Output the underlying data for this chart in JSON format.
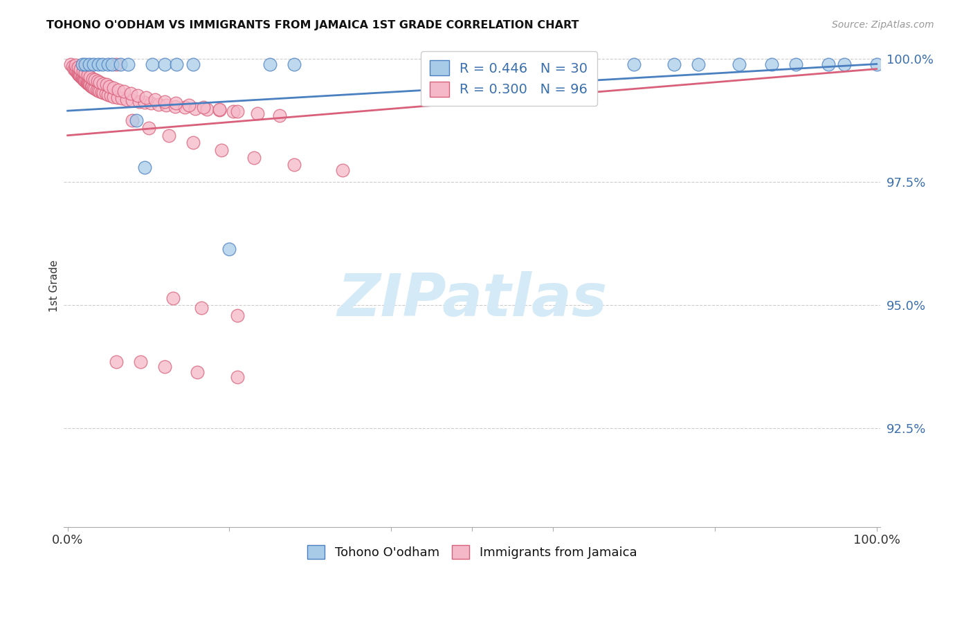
{
  "title": "TOHONO O'ODHAM VS IMMIGRANTS FROM JAMAICA 1ST GRADE CORRELATION CHART",
  "source": "Source: ZipAtlas.com",
  "ylabel": "1st Grade",
  "r1": 0.446,
  "n1": 30,
  "r2": 0.3,
  "n2": 96,
  "blue_face": "#a8cce8",
  "blue_edge": "#4a7fc0",
  "pink_face": "#f5b8c8",
  "pink_edge": "#d9607a",
  "blue_line": "#4a7fc0",
  "pink_line": "#d9607a",
  "legend_label1": "Tohono O'odham",
  "legend_label2": "Immigrants from Jamaica",
  "watermark_color": "#d4eaf7",
  "axis_color": "#3a6fad",
  "ylim_lo": 0.905,
  "ylim_hi": 1.003,
  "yticks": [
    0.925,
    0.95,
    0.975,
    1.0
  ],
  "ytick_labels": [
    "92.5%",
    "95.0%",
    "97.5%",
    "100.0%"
  ],
  "blue_x": [
    0.018,
    0.022,
    0.027,
    0.032,
    0.038,
    0.043,
    0.05,
    0.055,
    0.065,
    0.075,
    0.085,
    0.095,
    0.105,
    0.12,
    0.135,
    0.155,
    0.2,
    0.25,
    0.28,
    0.6,
    0.64,
    0.7,
    0.75,
    0.78,
    0.83,
    0.87,
    0.9,
    0.94,
    0.96,
    1.0
  ],
  "blue_y": [
    0.999,
    0.999,
    0.999,
    0.999,
    0.999,
    0.999,
    0.999,
    0.999,
    0.999,
    0.999,
    0.9875,
    0.978,
    0.999,
    0.999,
    0.999,
    0.999,
    0.9615,
    0.999,
    0.999,
    0.999,
    0.999,
    0.999,
    0.999,
    0.999,
    0.999,
    0.999,
    0.999,
    0.999,
    0.999,
    0.999
  ],
  "pink_x": [
    0.004,
    0.006,
    0.008,
    0.01,
    0.011,
    0.012,
    0.013,
    0.014,
    0.015,
    0.016,
    0.017,
    0.018,
    0.019,
    0.02,
    0.021,
    0.022,
    0.023,
    0.024,
    0.025,
    0.026,
    0.027,
    0.028,
    0.029,
    0.03,
    0.032,
    0.034,
    0.036,
    0.038,
    0.04,
    0.042,
    0.044,
    0.047,
    0.05,
    0.053,
    0.057,
    0.062,
    0.067,
    0.073,
    0.08,
    0.088,
    0.095,
    0.103,
    0.112,
    0.122,
    0.133,
    0.145,
    0.158,
    0.172,
    0.188,
    0.205,
    0.01,
    0.013,
    0.016,
    0.019,
    0.022,
    0.025,
    0.028,
    0.031,
    0.034,
    0.037,
    0.04,
    0.044,
    0.048,
    0.052,
    0.057,
    0.063,
    0.07,
    0.078,
    0.087,
    0.097,
    0.108,
    0.12,
    0.134,
    0.15,
    0.168,
    0.188,
    0.21,
    0.235,
    0.262,
    0.06,
    0.08,
    0.1,
    0.125,
    0.155,
    0.19,
    0.23,
    0.28,
    0.34,
    0.13,
    0.165,
    0.21,
    0.06,
    0.09,
    0.12,
    0.16,
    0.21
  ],
  "pink_y": [
    0.999,
    0.9985,
    0.998,
    0.9978,
    0.9975,
    0.9972,
    0.997,
    0.9968,
    0.9967,
    0.9965,
    0.9963,
    0.9962,
    0.996,
    0.9959,
    0.9957,
    0.9956,
    0.9954,
    0.9952,
    0.9951,
    0.995,
    0.9948,
    0.9947,
    0.9945,
    0.9944,
    0.9942,
    0.994,
    0.9938,
    0.9936,
    0.9935,
    0.9933,
    0.9932,
    0.993,
    0.9928,
    0.9926,
    0.9924,
    0.9922,
    0.992,
    0.9918,
    0.9916,
    0.9914,
    0.9912,
    0.991,
    0.9908,
    0.9906,
    0.9904,
    0.9902,
    0.99,
    0.9898,
    0.9896,
    0.9894,
    0.9988,
    0.9984,
    0.998,
    0.9976,
    0.9972,
    0.9968,
    0.9964,
    0.996,
    0.9958,
    0.9956,
    0.9953,
    0.995,
    0.9948,
    0.9945,
    0.9942,
    0.9938,
    0.9934,
    0.993,
    0.9926,
    0.9922,
    0.9918,
    0.9914,
    0.991,
    0.9906,
    0.9902,
    0.9898,
    0.9894,
    0.989,
    0.9886,
    0.999,
    0.9875,
    0.986,
    0.9845,
    0.983,
    0.9815,
    0.98,
    0.9785,
    0.9775,
    0.9515,
    0.9495,
    0.948,
    0.9385,
    0.9385,
    0.9375,
    0.9365,
    0.9355
  ]
}
